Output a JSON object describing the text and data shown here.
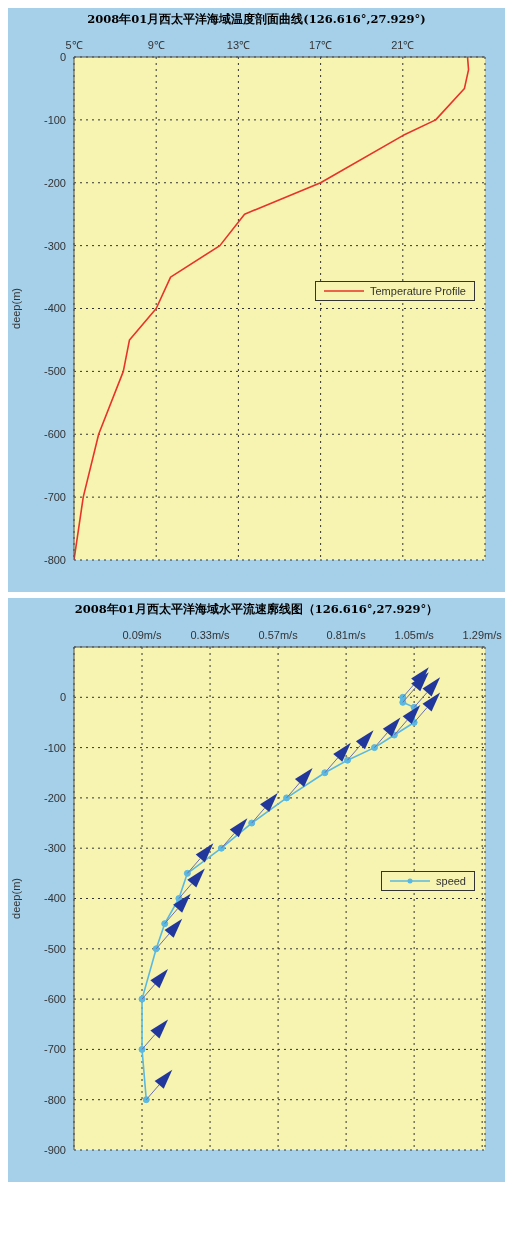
{
  "chart_data": [
    {
      "type": "line",
      "title": "2008年01月西太平洋海域温度剖面曲线(126.616°,27.929°)",
      "ylabel": "deep(m)",
      "series": [
        {
          "name": "Temperature Profile",
          "color": "#e8322a",
          "x": [
            24.15,
            24.2,
            24.0,
            22.6,
            21.0,
            17.0,
            13.3,
            12.1,
            9.7,
            9.0,
            7.7,
            7.4,
            6.2,
            5.45,
            5.0
          ],
          "values": [
            0,
            -20,
            -50,
            -100,
            -125,
            -200,
            -250,
            -300,
            -350,
            -400,
            -450,
            -500,
            -600,
            -700,
            -800
          ]
        }
      ],
      "xlim": [
        5,
        25
      ],
      "xticks": [
        {
          "value": 5,
          "label": "5℃"
        },
        {
          "value": 9,
          "label": "9℃"
        },
        {
          "value": 13,
          "label": "13℃"
        },
        {
          "value": 17,
          "label": "17℃"
        },
        {
          "value": 21,
          "label": "21℃"
        }
      ],
      "ylim": [
        -800,
        0
      ],
      "yticks": [
        -800,
        -700,
        -600,
        -500,
        -400,
        -300,
        -200,
        -100,
        0
      ],
      "grid": true,
      "legend": "right",
      "marker": "none",
      "line_style": "solid"
    },
    {
      "type": "line",
      "title": "2008年01月西太平洋海域水平流速廓线图（126.616°,27.929°）",
      "ylabel": "deep(m)",
      "series": [
        {
          "name": "speed",
          "color": "#5bb8e0",
          "x": [
            1.01,
            1.01,
            1.05,
            1.05,
            0.98,
            0.91,
            0.815,
            0.735,
            0.6,
            0.477,
            0.37,
            0.25,
            0.22,
            0.17,
            0.14,
            0.09,
            0.09,
            0.105
          ],
          "values": [
            0,
            -10,
            -20,
            -50,
            -75,
            -100,
            -125,
            -150,
            -200,
            -250,
            -300,
            -350,
            -400,
            -450,
            -500,
            -600,
            -700,
            -800
          ]
        }
      ],
      "xlim": [
        -0.15,
        1.3
      ],
      "xticks": [
        {
          "value": 0.09,
          "label": "0.09m/s"
        },
        {
          "value": 0.33,
          "label": "0.33m/s"
        },
        {
          "value": 0.57,
          "label": "0.57m/s"
        },
        {
          "value": 0.81,
          "label": "0.81m/s"
        },
        {
          "value": 1.05,
          "label": "1.05m/s"
        },
        {
          "value": 1.29,
          "label": "1.29m/s"
        }
      ],
      "ylim": [
        -900,
        100
      ],
      "yticks": [
        -900,
        -800,
        -700,
        -600,
        -500,
        -400,
        -300,
        -200,
        -100,
        0
      ],
      "grid": true,
      "legend": "right",
      "marker": "circle",
      "line_style": "solid"
    }
  ]
}
